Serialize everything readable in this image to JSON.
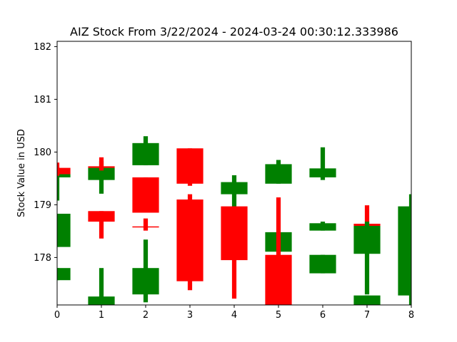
{
  "chart_data": {
    "type": "candlestick",
    "title": "AIZ Stock From 3/22/2024 - 2024-03-24 00:30:12.333986",
    "xlabel": "",
    "ylabel": "Stock Value in USD",
    "xlim": [
      0,
      8
    ],
    "ylim": [
      177.1,
      182.1
    ],
    "x_ticks": [
      "0",
      "1",
      "2",
      "3",
      "4",
      "5",
      "6",
      "7",
      "8"
    ],
    "y_ticks": [
      "178",
      "179",
      "180",
      "181",
      "182"
    ],
    "grid": false,
    "colors": {
      "up": "#008000",
      "down": "#ff0000"
    },
    "candles": [
      {
        "x": 0,
        "open": 179.52,
        "close": 179.58,
        "high": 179.72,
        "low": 179.08,
        "direction": "up"
      },
      {
        "x": 0,
        "open": 179.7,
        "close": 179.58,
        "high": 179.8,
        "low": 179.55,
        "direction": "down"
      },
      {
        "x": 0,
        "open": 178.2,
        "close": 178.83,
        "high": 178.83,
        "low": 178.2,
        "direction": "up"
      },
      {
        "x": 0,
        "open": 177.57,
        "close": 177.8,
        "high": 177.8,
        "low": 177.57,
        "direction": "up"
      },
      {
        "x": 1,
        "open": 179.47,
        "close": 179.7,
        "high": 179.83,
        "low": 179.21,
        "direction": "up"
      },
      {
        "x": 1,
        "open": 179.73,
        "close": 179.7,
        "high": 179.9,
        "low": 179.65,
        "direction": "down"
      },
      {
        "x": 1,
        "open": 178.88,
        "close": 178.68,
        "high": 178.88,
        "low": 178.36,
        "direction": "down"
      },
      {
        "x": 1,
        "open": 177.1,
        "close": 177.26,
        "high": 177.8,
        "low": 177.1,
        "direction": "up"
      },
      {
        "x": 2,
        "open": 179.75,
        "close": 180.17,
        "high": 180.3,
        "low": 179.75,
        "direction": "up"
      },
      {
        "x": 2,
        "open": 179.52,
        "close": 178.85,
        "high": 179.52,
        "low": 178.85,
        "direction": "down"
      },
      {
        "x": 2,
        "open": 178.59,
        "close": 178.58,
        "high": 178.74,
        "low": 178.51,
        "direction": "down"
      },
      {
        "x": 2,
        "open": 177.3,
        "close": 177.8,
        "high": 178.34,
        "low": 177.15,
        "direction": "up"
      },
      {
        "x": 3,
        "open": 180.07,
        "close": 179.4,
        "high": 180.07,
        "low": 179.36,
        "direction": "down"
      },
      {
        "x": 3,
        "open": 179.1,
        "close": 177.55,
        "high": 179.2,
        "low": 177.38,
        "direction": "down"
      },
      {
        "x": 4,
        "open": 179.2,
        "close": 179.43,
        "high": 179.56,
        "low": 178.9,
        "direction": "up"
      },
      {
        "x": 4,
        "open": 178.97,
        "close": 177.95,
        "high": 178.97,
        "low": 177.22,
        "direction": "down"
      },
      {
        "x": 5,
        "open": 179.4,
        "close": 179.77,
        "high": 179.85,
        "low": 179.4,
        "direction": "up"
      },
      {
        "x": 5,
        "open": 178.11,
        "close": 178.48,
        "high": 178.48,
        "low": 178.11,
        "direction": "up"
      },
      {
        "x": 5,
        "open": 178.05,
        "close": 177.1,
        "high": 179.14,
        "low": 177.1,
        "direction": "down"
      },
      {
        "x": 6,
        "open": 179.52,
        "close": 179.69,
        "high": 180.09,
        "low": 179.47,
        "direction": "up"
      },
      {
        "x": 6,
        "open": 178.51,
        "close": 178.65,
        "high": 178.68,
        "low": 178.51,
        "direction": "up"
      },
      {
        "x": 6,
        "open": 177.7,
        "close": 178.05,
        "high": 178.05,
        "low": 177.7,
        "direction": "up"
      },
      {
        "x": 7,
        "open": 178.64,
        "close": 178.6,
        "high": 178.99,
        "low": 178.55,
        "direction": "down"
      },
      {
        "x": 7,
        "open": 178.07,
        "close": 178.6,
        "high": 178.68,
        "low": 177.3,
        "direction": "up"
      },
      {
        "x": 7,
        "open": 177.1,
        "close": 177.28,
        "high": 177.28,
        "low": 177.1,
        "direction": "up"
      },
      {
        "x": 8,
        "open": 177.28,
        "close": 178.97,
        "high": 179.2,
        "low": 177.1,
        "direction": "up"
      }
    ]
  }
}
